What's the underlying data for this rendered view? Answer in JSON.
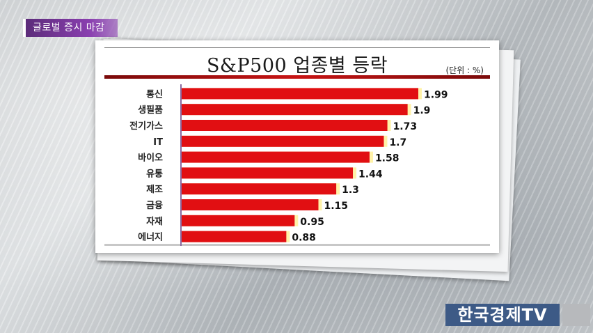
{
  "topic_badge": "글로벌 증시 마감",
  "broadcaster_logo": "한국경제TV",
  "colors": {
    "bar": "#e10f12",
    "bar_highlight": "#fff2a8",
    "axis": "#8a6aa0",
    "badge": "#6a2f8c"
  },
  "chart_data": {
    "type": "bar",
    "orientation": "horizontal",
    "title": "S&P500 업종별 등락",
    "unit_label": "(단위 : %)",
    "categories": [
      "통신",
      "생필품",
      "전기가스",
      "IT",
      "바이오",
      "유통",
      "제조",
      "금융",
      "자재",
      "에너지"
    ],
    "values": [
      1.99,
      1.9,
      1.73,
      1.7,
      1.58,
      1.44,
      1.3,
      1.15,
      0.95,
      0.88
    ],
    "value_labels": [
      "1.99",
      "1.9",
      "1.73",
      "1.7",
      "1.58",
      "1.44",
      "1.3",
      "1.15",
      "0.95",
      "0.88"
    ],
    "xlim": [
      0,
      2.2
    ],
    "grid": false,
    "legend": "none"
  }
}
